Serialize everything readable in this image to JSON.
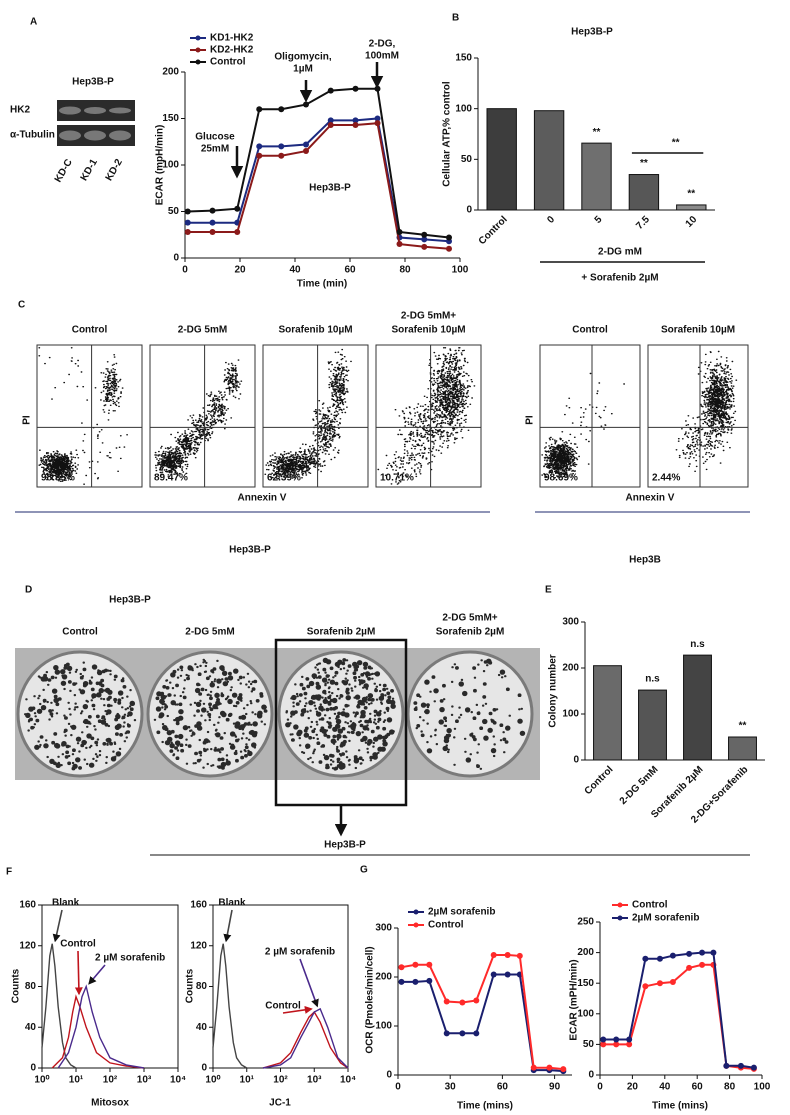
{
  "panel_labels": [
    "A",
    "B",
    "C",
    "D",
    "E",
    "F",
    "G"
  ],
  "western_blot": {
    "title": "Hep3B-P",
    "rows": [
      "HK2",
      "α-Tubulin"
    ],
    "lanes": [
      "KD-C",
      "KD-1",
      "KD-2"
    ]
  },
  "flow_left": {
    "conditions": [
      [
        "Control"
      ],
      [
        "2-DG 5mM"
      ],
      [
        "Sorafenib 10µM"
      ],
      [
        "2-DG 5mM+",
        "Sorafenib 10µM"
      ]
    ],
    "percentages": [
      "98.35%",
      "89.47%",
      "62.39%",
      "10.71%"
    ],
    "y_label": "PI",
    "x_label": "Annexin V",
    "cell_line": "Hep3B-P"
  },
  "flow_right": {
    "conditions": [
      [
        "Control"
      ],
      [
        "Sorafenib 10µM"
      ]
    ],
    "percentages": [
      "98.69%",
      "2.44%"
    ],
    "y_label": "PI",
    "x_label": "Annexin V",
    "cell_line": "Hep3B"
  },
  "colony_assay": {
    "title": "Hep3B-P",
    "conditions": [
      [
        "Control"
      ],
      [
        "2-DG 5mM"
      ],
      [
        "Sorafenib 2µM"
      ],
      [
        "2-DG 5mM+",
        "Sorafenib 2µM"
      ]
    ],
    "cell_line": "Hep3B-P"
  },
  "chart_data": [
    {
      "type": "line",
      "y_label": "ECAR (mpH/min)",
      "x_label": "Time (min)",
      "note": "Hep3B-P",
      "annotations": [
        [
          "Glucose",
          "25mM"
        ],
        [
          "Oligomycin,",
          "1µM"
        ],
        [
          "2-DG,",
          "100mM"
        ]
      ],
      "x": [
        1,
        10,
        19,
        27,
        35,
        44,
        53,
        62,
        70,
        78,
        87,
        96
      ],
      "series": [
        {
          "name": "KD1-HK2",
          "color": "#1c2a80",
          "values": [
            38,
            38,
            38,
            120,
            120,
            122,
            148,
            148,
            150,
            22,
            20,
            18
          ]
        },
        {
          "name": "KD2-HK2",
          "color": "#8b1a1a",
          "values": [
            28,
            28,
            28,
            110,
            110,
            115,
            143,
            143,
            145,
            15,
            12,
            10
          ]
        },
        {
          "name": "Control",
          "color": "#111111",
          "values": [
            50,
            51,
            53,
            160,
            160,
            165,
            180,
            182,
            182,
            28,
            25,
            22
          ]
        }
      ],
      "xlim": [
        0,
        100
      ],
      "xticks": [
        0,
        20,
        40,
        60,
        80,
        100
      ],
      "ylim": [
        0,
        200
      ],
      "yticks": [
        0,
        50,
        100,
        150,
        200
      ],
      "markers": true,
      "legend": "top-left"
    },
    {
      "type": "bar",
      "title": "Hep3B-P",
      "y_label": "Cellular ATP,% control",
      "categories": [
        "Control",
        "0",
        "5",
        "7.5",
        "10"
      ],
      "values": [
        100,
        98,
        66,
        35,
        5
      ],
      "colors": [
        "#3d3d3d",
        "#5c5c5c",
        "#6f6f6f",
        "#575757",
        "#8a8a8a"
      ],
      "ylim": [
        0,
        150
      ],
      "yticks": [
        0,
        50,
        100,
        150
      ],
      "significance": [
        null,
        null,
        "**",
        "**",
        "**"
      ],
      "bracket_label": "**",
      "x_label": "2-DG mM",
      "x_label2": "+ Sorafenib 2µM"
    },
    {
      "type": "bar",
      "y_label": "Colony number",
      "categories": [
        "Control",
        "2-DG 5mM",
        "Sorafenib 2µM",
        "2-DG+Sorafenib"
      ],
      "values": [
        205,
        152,
        228,
        50
      ],
      "colors": [
        "#6a6a6a",
        "#555555",
        "#444444",
        "#666666"
      ],
      "ylim": [
        0,
        300
      ],
      "yticks": [
        0,
        100,
        200,
        300
      ],
      "significance": [
        null,
        "n.s",
        "n.s",
        "**"
      ]
    },
    {
      "type": "line",
      "xscale": "log",
      "x_label": "Mitosox",
      "y_label": "Counts",
      "series": [
        {
          "name": "Blank",
          "color": "#444444",
          "x": [
            1,
            1.3,
            1.7,
            2,
            2.4,
            3,
            4,
            5,
            7,
            10
          ],
          "values": [
            20,
            60,
            110,
            122,
            100,
            60,
            25,
            10,
            3,
            0
          ]
        },
        {
          "name": "Control",
          "color": "#c0141c",
          "x": [
            2,
            4,
            6,
            8,
            10,
            13,
            20,
            40,
            100,
            300,
            1000
          ],
          "values": [
            0,
            10,
            30,
            55,
            70,
            60,
            40,
            15,
            5,
            2,
            0
          ]
        },
        {
          "name": "2 µM sorafenib",
          "color": "#4a2a8c",
          "x": [
            3,
            6,
            10,
            15,
            20,
            30,
            50,
            100,
            300,
            1000
          ],
          "values": [
            0,
            15,
            40,
            70,
            80,
            55,
            30,
            10,
            3,
            0
          ]
        }
      ],
      "xlim": [
        1,
        10000
      ],
      "xticks": [
        {
          "value": 1,
          "label": "10⁰"
        },
        {
          "value": 10,
          "label": "10¹"
        },
        {
          "value": 100,
          "label": "10²"
        },
        {
          "value": 1000,
          "label": "10³"
        },
        {
          "value": 10000,
          "label": "10⁴"
        }
      ],
      "ylim": [
        0,
        160
      ],
      "yticks": [
        0,
        40,
        80,
        120,
        160
      ],
      "legend": "peak"
    },
    {
      "type": "line",
      "xscale": "log",
      "x_label": "JC-1",
      "y_label": "Counts",
      "series": [
        {
          "name": "Blank",
          "color": "#444444",
          "x": [
            1,
            1.3,
            1.7,
            2,
            2.4,
            3,
            4,
            5,
            7,
            10
          ],
          "values": [
            20,
            60,
            110,
            122,
            100,
            60,
            25,
            10,
            3,
            0
          ]
        },
        {
          "name": "Control",
          "color": "#c0141c",
          "x": [
            30,
            100,
            200,
            400,
            700,
            1000,
            1500,
            3000,
            6000,
            10000
          ],
          "values": [
            0,
            5,
            15,
            35,
            50,
            55,
            45,
            20,
            5,
            0
          ]
        },
        {
          "name": "2 µM sorafenib",
          "color": "#4a2a8c",
          "x": [
            30,
            100,
            200,
            400,
            700,
            1000,
            1500,
            2500,
            5000,
            10000
          ],
          "values": [
            0,
            3,
            10,
            30,
            45,
            55,
            58,
            40,
            10,
            0
          ]
        }
      ],
      "xlim": [
        1,
        10000
      ],
      "xticks": [
        {
          "value": 1,
          "label": "10⁰"
        },
        {
          "value": 10,
          "label": "10¹"
        },
        {
          "value": 100,
          "label": "10²"
        },
        {
          "value": 1000,
          "label": "10³"
        },
        {
          "value": 10000,
          "label": "10⁴"
        }
      ],
      "ylim": [
        0,
        160
      ],
      "yticks": [
        0,
        40,
        80,
        120,
        160
      ],
      "legend": "peak"
    },
    {
      "type": "line",
      "x_label": "Time (mins)",
      "y_label": "OCR (Pmoles/min/cell)",
      "x": [
        2,
        10,
        18,
        28,
        37,
        45,
        55,
        63,
        70,
        78,
        87,
        95
      ],
      "series": [
        {
          "name": "2µM sorafenib",
          "color": "#1a1f6e",
          "values": [
            190,
            190,
            192,
            85,
            85,
            85,
            205,
            205,
            205,
            10,
            10,
            8
          ]
        },
        {
          "name": "Control",
          "color": "#ff2a2a",
          "values": [
            220,
            225,
            225,
            150,
            148,
            152,
            245,
            245,
            243,
            15,
            15,
            12
          ]
        }
      ],
      "xlim": [
        0,
        100
      ],
      "xticks": [
        0,
        30,
        60,
        90
      ],
      "ylim": [
        0,
        300
      ],
      "yticks": [
        0,
        100,
        200,
        300
      ],
      "markers": true,
      "legend": "top-left"
    },
    {
      "type": "line",
      "x_label": "Time (mins)",
      "y_label": "ECAR (mPH/min)",
      "x": [
        2,
        10,
        18,
        28,
        37,
        45,
        55,
        63,
        70,
        78,
        87,
        95
      ],
      "series": [
        {
          "name": "Control",
          "color": "#ff2a2a",
          "values": [
            50,
            50,
            50,
            145,
            150,
            152,
            175,
            180,
            180,
            15,
            12,
            10
          ]
        },
        {
          "name": "2µM sorafenib",
          "color": "#1a1f6e",
          "values": [
            58,
            58,
            58,
            190,
            190,
            195,
            198,
            200,
            200,
            15,
            15,
            12
          ]
        }
      ],
      "xlim": [
        0,
        100
      ],
      "xticks": [
        0,
        20,
        40,
        60,
        80,
        100
      ],
      "ylim": [
        0,
        250
      ],
      "yticks": [
        0,
        50,
        100,
        150,
        200,
        250
      ],
      "markers": true,
      "legend": "top-left"
    }
  ]
}
